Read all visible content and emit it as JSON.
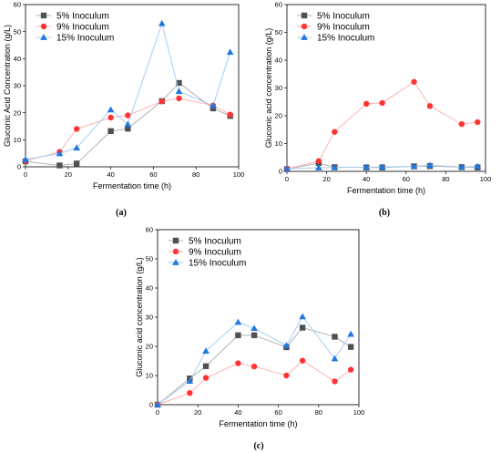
{
  "colors": {
    "series": [
      "#505050",
      "#ff3333",
      "#1f77e0"
    ],
    "lines": [
      "#b0b0b0",
      "#ffb3b3",
      "#a6cdf2"
    ]
  },
  "chart_data": [
    {
      "type": "line",
      "caption": "(a)",
      "xlabel": "Fermentation time (h)",
      "ylabel": "Gluconic Acid Concentration (g/L)",
      "xlim": [
        0,
        100
      ],
      "ylim": [
        0,
        60
      ],
      "xticks": [
        0,
        20,
        40,
        60,
        80,
        100
      ],
      "yticks": [
        0,
        10,
        20,
        30,
        40,
        50,
        60
      ],
      "legend": "top-left",
      "grid": false,
      "series": [
        {
          "name": "5% Inoculum",
          "marker": "square",
          "x": [
            0,
            16,
            24,
            40,
            48,
            64,
            72,
            88,
            96
          ],
          "y": [
            2,
            0.5,
            1.2,
            13.2,
            14.1,
            24.3,
            31,
            21.6,
            18.8
          ]
        },
        {
          "name": "9% Inoculum",
          "marker": "circle",
          "x": [
            0,
            16,
            24,
            40,
            48,
            64,
            72,
            88,
            96
          ],
          "y": [
            2.2,
            5.5,
            14,
            18.2,
            19,
            24.2,
            25.3,
            22.7,
            19.3
          ]
        },
        {
          "name": "15% Inoculum",
          "marker": "triangle",
          "x": [
            0,
            16,
            24,
            40,
            48,
            64,
            72,
            88,
            96
          ],
          "y": [
            2.7,
            4.9,
            7,
            21.1,
            15.7,
            53,
            27.9,
            22.6,
            42.4
          ]
        }
      ]
    },
    {
      "type": "line",
      "caption": "(b)",
      "xlabel": "Fermentation time (h)",
      "ylabel": "Gluconic acid concentration (g/L)",
      "xlim": [
        0,
        100
      ],
      "ylim": [
        0,
        60
      ],
      "xticks": [
        0,
        20,
        40,
        60,
        80,
        100
      ],
      "yticks": [
        0,
        10,
        20,
        30,
        40,
        50,
        60
      ],
      "legend": "top-left",
      "grid": false,
      "series": [
        {
          "name": "5% Inoculum",
          "marker": "square",
          "x": [
            0,
            16,
            24,
            40,
            48,
            64,
            72,
            88,
            96
          ],
          "y": [
            0.8,
            3,
            1.5,
            1.4,
            1.4,
            1.8,
            1.9,
            1.5,
            1.4
          ]
        },
        {
          "name": "9% Inoculum",
          "marker": "circle",
          "x": [
            0,
            16,
            24,
            40,
            48,
            64,
            72,
            88,
            96
          ],
          "y": [
            0.9,
            3.7,
            14.2,
            24.3,
            24.6,
            32.2,
            23.5,
            17,
            17.7
          ]
        },
        {
          "name": "15% Inoculum",
          "marker": "triangle",
          "x": [
            0,
            16,
            24,
            40,
            48,
            64,
            72,
            88,
            96
          ],
          "y": [
            1,
            1.3,
            1.4,
            1.5,
            1.6,
            1.8,
            2.2,
            1.6,
            1.8
          ]
        }
      ]
    },
    {
      "type": "line",
      "caption": "(c)",
      "xlabel": "Fermentation time (h)",
      "ylabel": "Gluconic acid concentration (g/L)",
      "xlim": [
        0,
        100
      ],
      "ylim": [
        0,
        60
      ],
      "xticks": [
        0,
        20,
        40,
        60,
        80,
        100
      ],
      "yticks": [
        0,
        10,
        20,
        30,
        40,
        50,
        60
      ],
      "legend": "top-left",
      "grid": false,
      "series": [
        {
          "name": "5% Inoculum",
          "marker": "square",
          "x": [
            0,
            16,
            24,
            40,
            48,
            64,
            72,
            88,
            96
          ],
          "y": [
            0,
            9,
            13.2,
            23.8,
            23.8,
            19.7,
            26.4,
            23.3,
            19.8
          ]
        },
        {
          "name": "9% Inoculum",
          "marker": "circle",
          "x": [
            0,
            16,
            24,
            40,
            48,
            64,
            72,
            88,
            96
          ],
          "y": [
            0,
            4,
            9.2,
            14.2,
            13.1,
            10,
            15.1,
            8,
            12
          ]
        },
        {
          "name": "15% Inoculum",
          "marker": "triangle",
          "x": [
            0,
            16,
            24,
            40,
            48,
            64,
            72,
            88,
            96
          ],
          "y": [
            0,
            8.1,
            18.4,
            28.3,
            26.2,
            20.3,
            30.2,
            15.8,
            24.2
          ]
        }
      ]
    }
  ]
}
